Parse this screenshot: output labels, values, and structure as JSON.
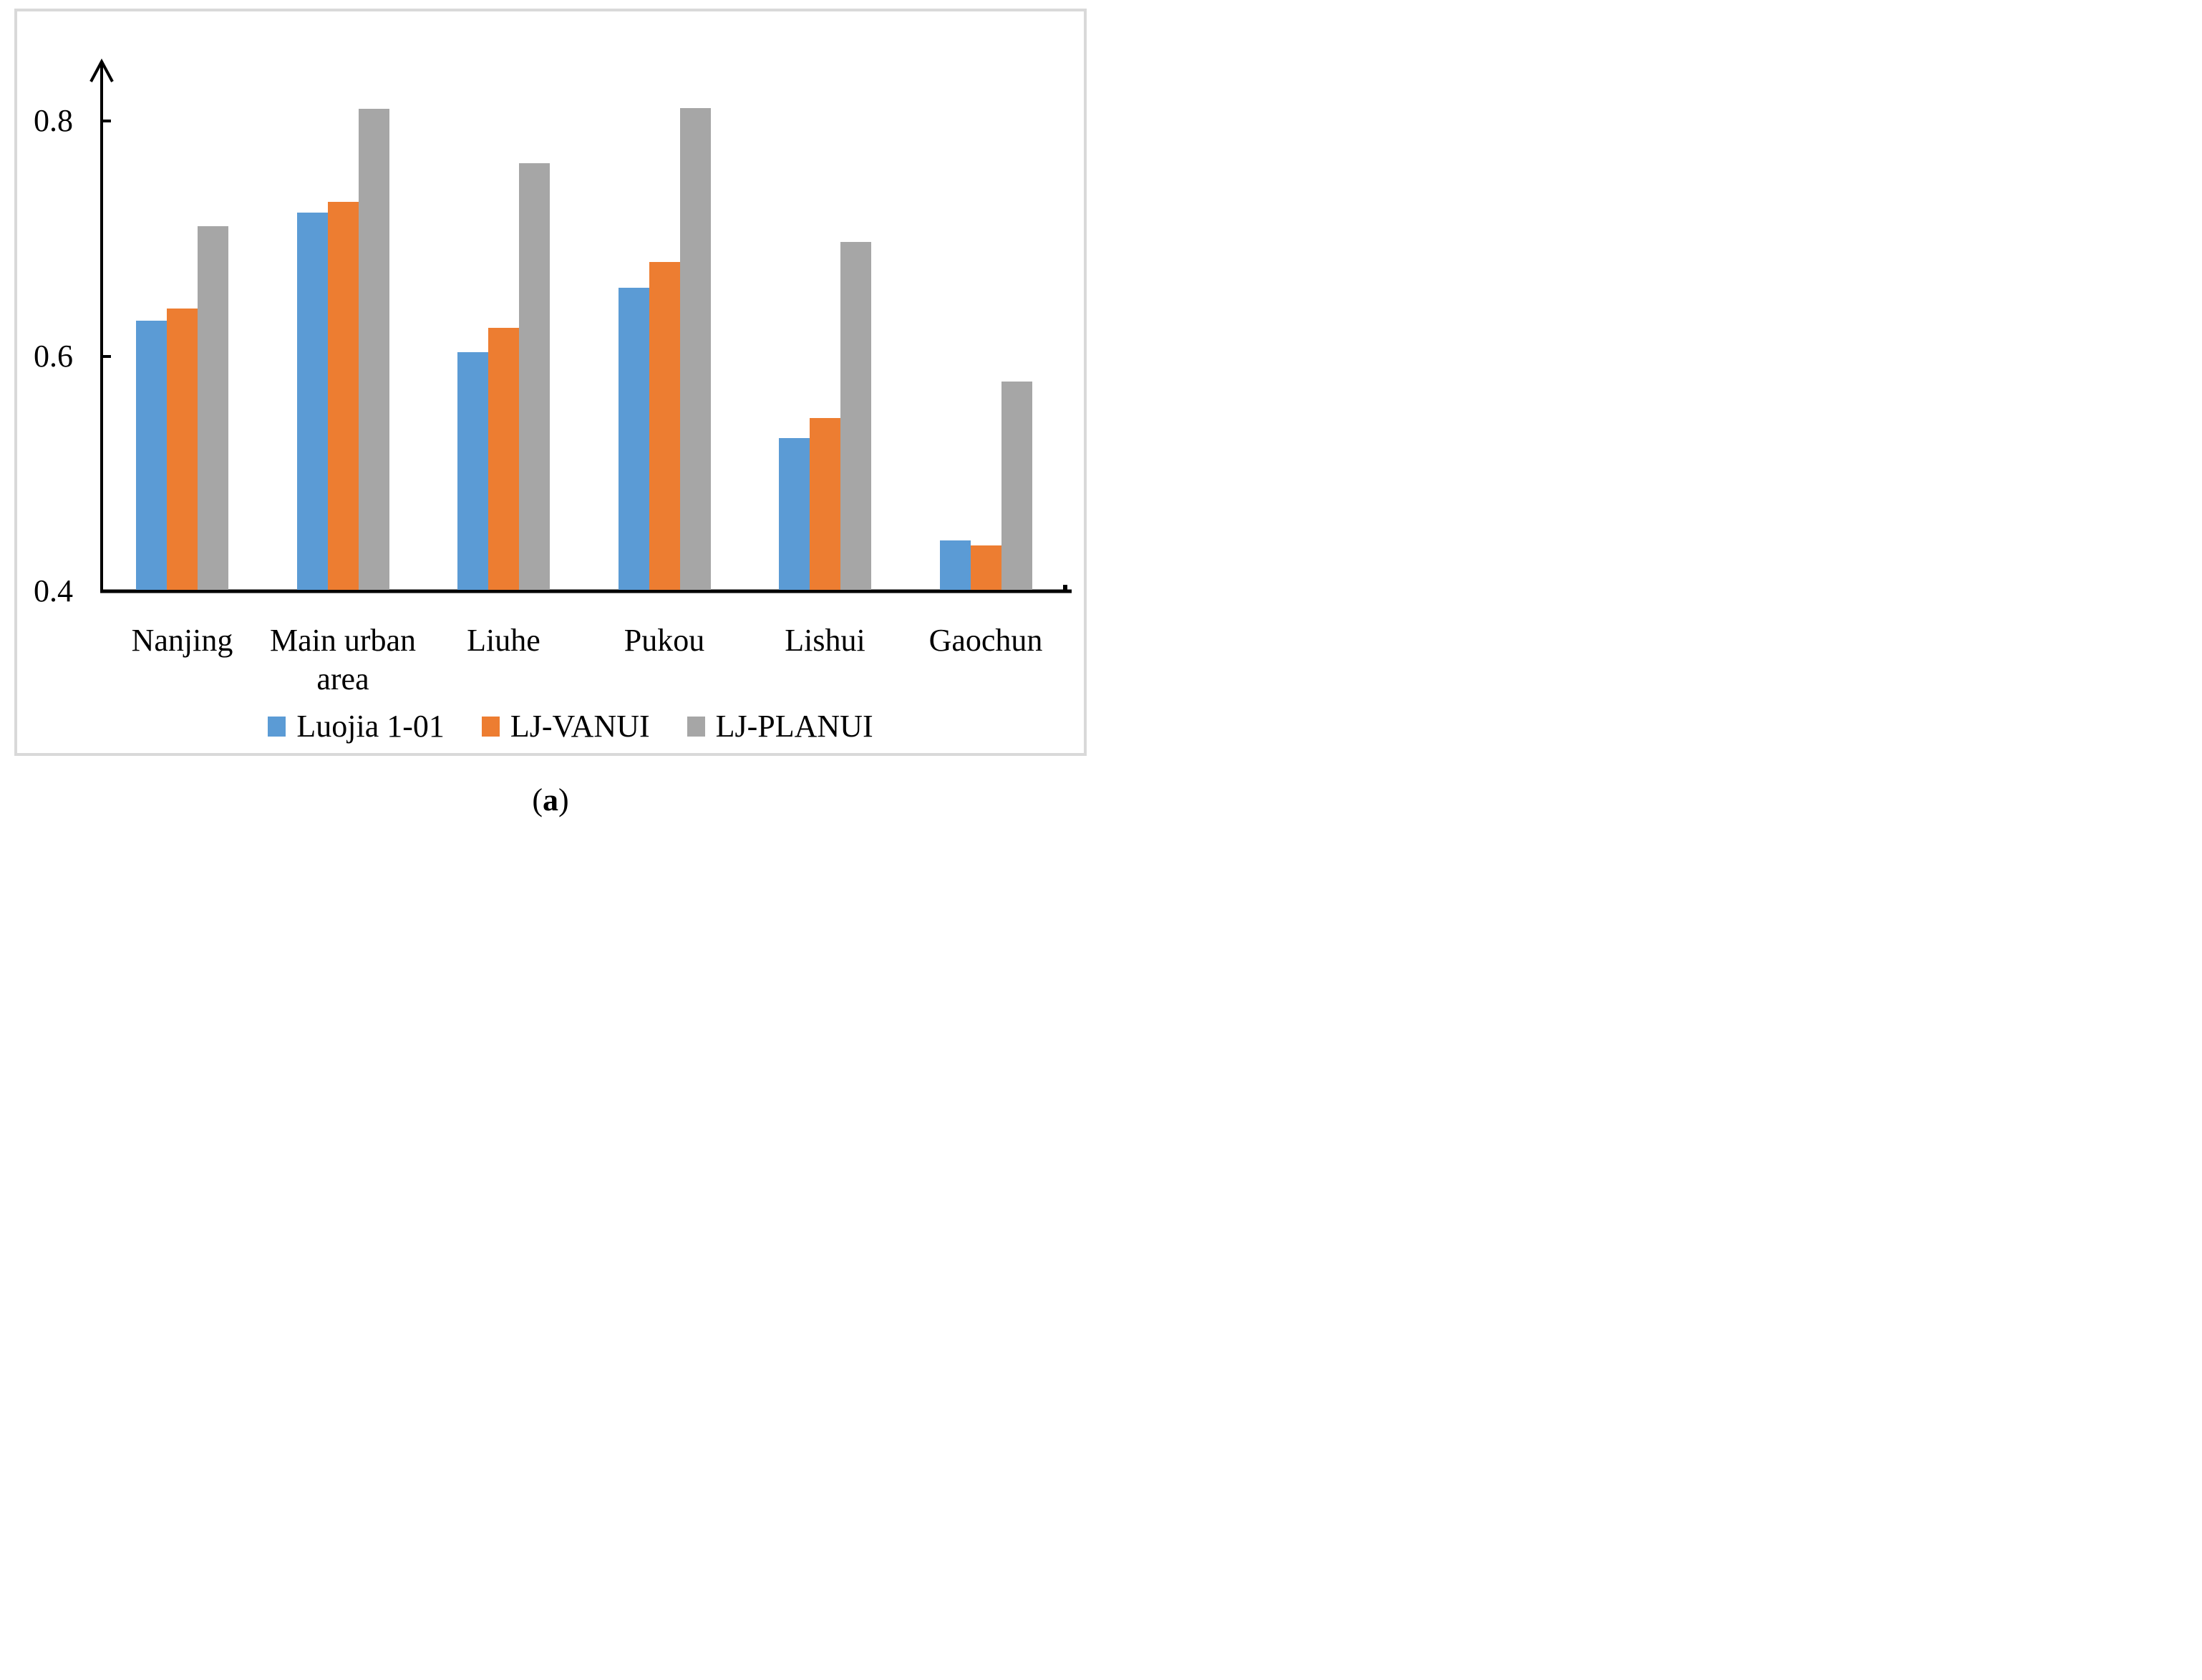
{
  "figure": {
    "caption": {
      "open": "(",
      "letter": "a",
      "close": ")"
    }
  },
  "chart_data": {
    "type": "bar",
    "title": "",
    "xlabel": "",
    "ylabel": "",
    "categories": [
      "Nanjing",
      "Main urban area",
      "Liuhe",
      "Pukou",
      "Lishui",
      "Gaochun"
    ],
    "category_label_lines": [
      [
        "Nanjing"
      ],
      [
        "Main urban",
        "area"
      ],
      [
        "Liuhe"
      ],
      [
        "Pukou"
      ],
      [
        "Lishui"
      ],
      [
        "Gaochun"
      ]
    ],
    "series": [
      {
        "name": "Luojia 1-01",
        "color": "#5B9BD5",
        "values": [
          0.629,
          0.721,
          0.602,
          0.657,
          0.529,
          0.442
        ]
      },
      {
        "name": "LJ-VANUI",
        "color": "#ED7D31",
        "values": [
          0.639,
          0.73,
          0.623,
          0.679,
          0.546,
          0.438
        ]
      },
      {
        "name": "LJ-PLANUI",
        "color": "#A6A6A6",
        "values": [
          0.709,
          0.809,
          0.763,
          0.81,
          0.696,
          0.577
        ]
      }
    ],
    "ylim": [
      0.4,
      0.85
    ],
    "yticks": [
      0.4,
      0.6,
      0.8
    ],
    "ytick_labels": [
      "0.4",
      "0.6",
      "0.8"
    ],
    "grid": false,
    "legend_position": "bottom",
    "axis_color": "#000000",
    "frame_color": "#D9D9D9"
  }
}
